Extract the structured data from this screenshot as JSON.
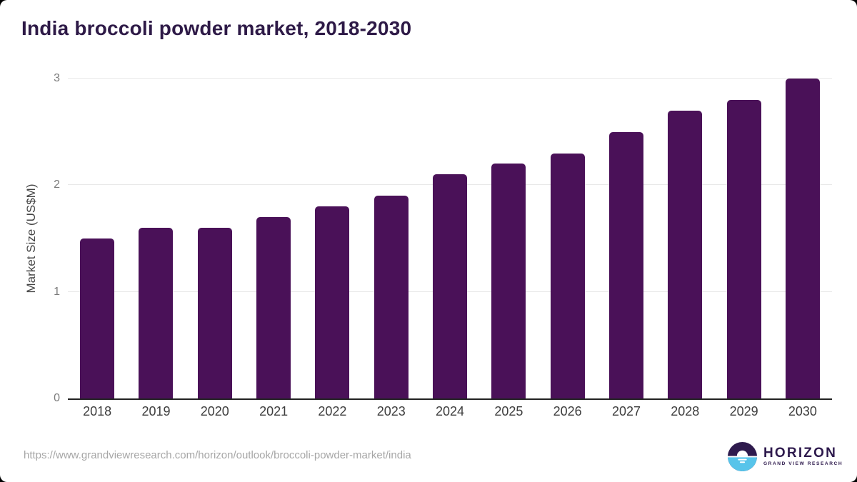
{
  "title": {
    "text": "India broccoli powder market, 2018-2030",
    "color": "#2e1a47"
  },
  "chart_data": {
    "type": "bar",
    "title": "India broccoli powder market, 2018-2030",
    "categories": [
      "2018",
      "2019",
      "2020",
      "2021",
      "2022",
      "2023",
      "2024",
      "2025",
      "2026",
      "2027",
      "2028",
      "2029",
      "2030"
    ],
    "values": [
      1.5,
      1.6,
      1.6,
      1.7,
      1.8,
      1.9,
      2.1,
      2.2,
      2.3,
      2.5,
      2.7,
      2.8,
      3.0
    ],
    "xlabel": "",
    "ylabel": "Market Size (US$M)",
    "ylim": [
      0,
      3
    ],
    "yticks": [
      0,
      1,
      2,
      3
    ],
    "grid": true,
    "legend": false,
    "bar_color": "#4a1158",
    "gridline_color": "#e8e8e8",
    "axis_line_color": "#222222",
    "tick_label_color": "#7b7b7b",
    "x_label_color": "#3d3d3d"
  },
  "footer": {
    "source_url": "https://www.grandviewresearch.com/horizon/outlook/broccoli-powder-market/india",
    "logo": {
      "brand": "HORIZON",
      "sub_brand": "GRAND VIEW RESEARCH",
      "purple": "#2e1a4d",
      "blue": "#57c4ea"
    }
  }
}
